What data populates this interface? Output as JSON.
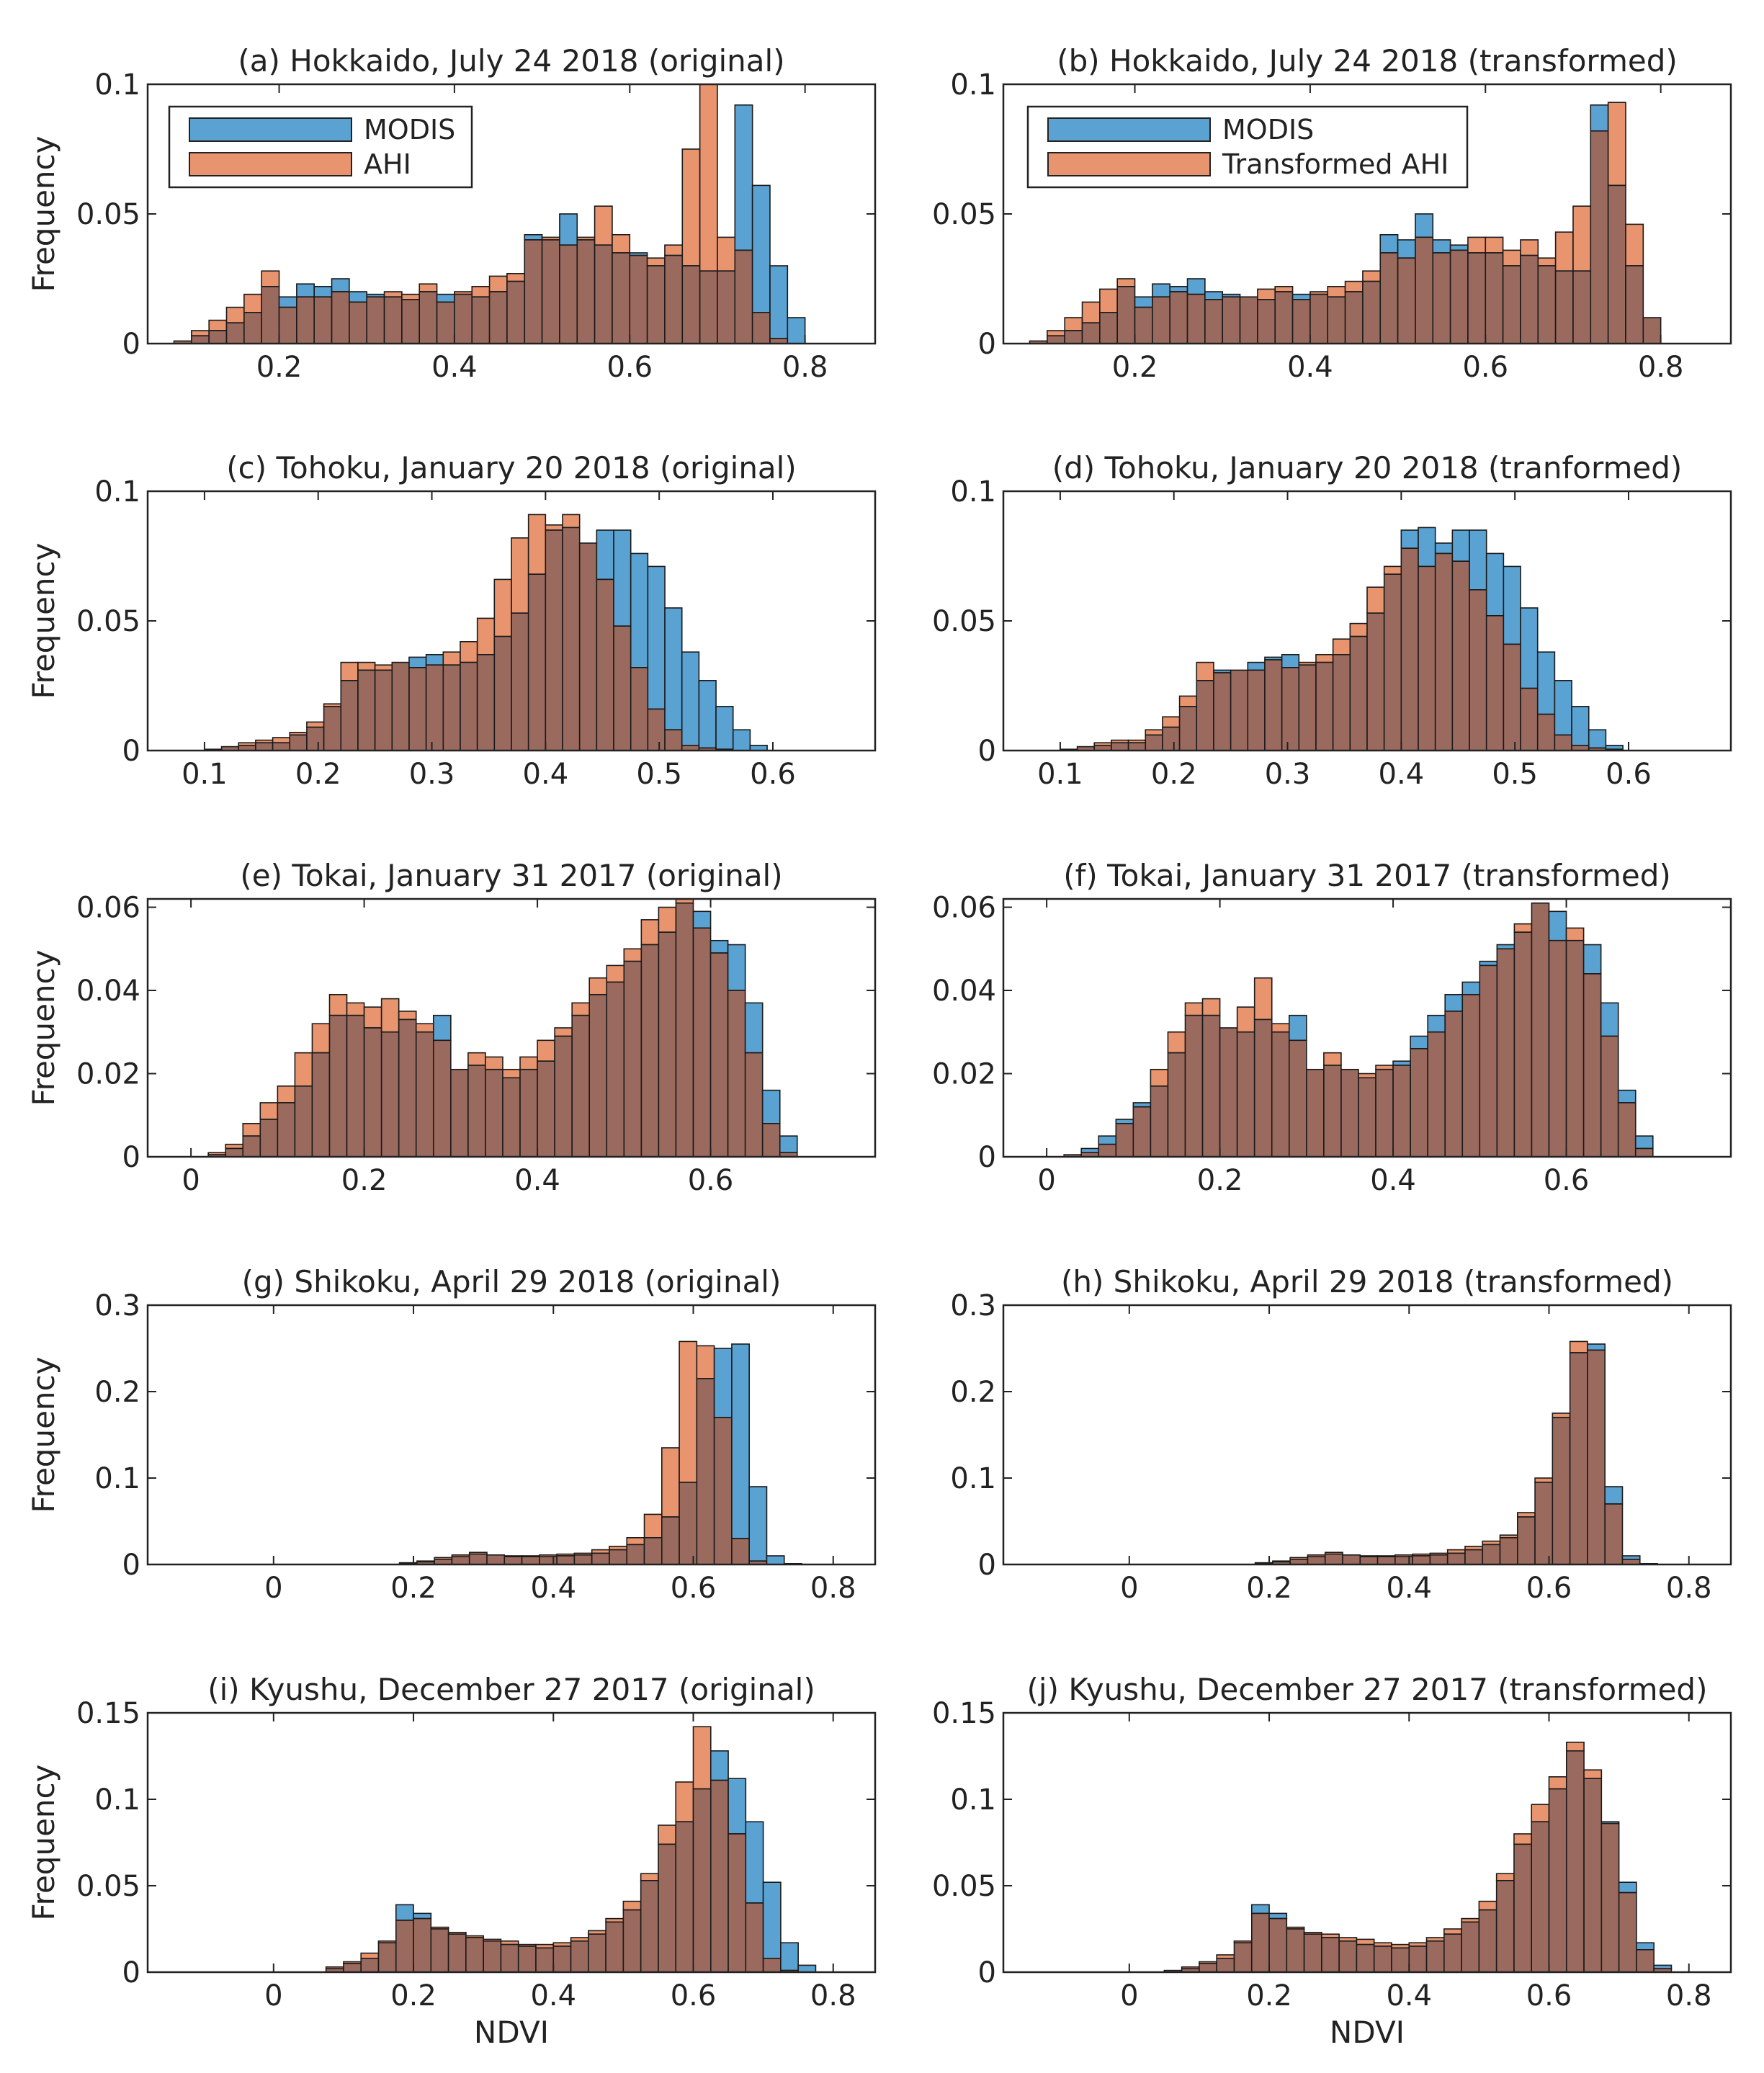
{
  "colors": {
    "modis": "#5aa2d2",
    "ahi": "#e8946e",
    "overlap": "#9b6a5e",
    "edge": "#1a1a1a"
  },
  "chart_data": [
    {
      "type": "bar",
      "title": "(a) Hokkaido, July 24 2018 (original)",
      "ylabel": "Frequency",
      "xlabel": "",
      "xlim": [
        0.05,
        0.88
      ],
      "ylim": [
        0,
        0.1
      ],
      "xticks": [
        0.2,
        0.4,
        0.6,
        0.8
      ],
      "yticks": [
        0,
        0.05,
        0.1
      ],
      "ytick_labels": [
        "0",
        "0.05",
        "0.1"
      ],
      "bin_start": 0.08,
      "bin_width": 0.02,
      "legend": [
        "MODIS",
        "AHI"
      ],
      "series": [
        {
          "name": "MODIS",
          "values": [
            0.001,
            0.003,
            0.005,
            0.008,
            0.012,
            0.022,
            0.018,
            0.023,
            0.022,
            0.025,
            0.02,
            0.019,
            0.018,
            0.017,
            0.02,
            0.019,
            0.019,
            0.018,
            0.02,
            0.024,
            0.042,
            0.04,
            0.05,
            0.04,
            0.038,
            0.035,
            0.035,
            0.03,
            0.034,
            0.03,
            0.028,
            0.028,
            0.092,
            0.061,
            0.03,
            0.01
          ]
        },
        {
          "name": "AHI",
          "values": [
            0.001,
            0.005,
            0.009,
            0.014,
            0.019,
            0.028,
            0.014,
            0.018,
            0.018,
            0.02,
            0.016,
            0.018,
            0.02,
            0.019,
            0.023,
            0.016,
            0.02,
            0.022,
            0.026,
            0.027,
            0.04,
            0.041,
            0.038,
            0.041,
            0.053,
            0.042,
            0.034,
            0.033,
            0.038,
            0.075,
            0.102,
            0.041,
            0.036,
            0.012,
            0.002,
            0.0
          ]
        }
      ]
    },
    {
      "type": "bar",
      "title": "(b) Hokkaido, July 24 2018 (transformed)",
      "ylabel": "",
      "xlabel": "",
      "xlim": [
        0.05,
        0.88
      ],
      "ylim": [
        0,
        0.1
      ],
      "xticks": [
        0.2,
        0.4,
        0.6,
        0.8
      ],
      "yticks": [
        0,
        0.05,
        0.1
      ],
      "ytick_labels": [
        "0",
        "0.05",
        "0.1"
      ],
      "bin_start": 0.08,
      "bin_width": 0.02,
      "legend": [
        "MODIS",
        "Transformed AHI"
      ],
      "series": [
        {
          "name": "MODIS",
          "values": [
            0.001,
            0.003,
            0.005,
            0.008,
            0.012,
            0.022,
            0.018,
            0.023,
            0.022,
            0.025,
            0.02,
            0.019,
            0.018,
            0.017,
            0.02,
            0.019,
            0.019,
            0.018,
            0.02,
            0.024,
            0.042,
            0.04,
            0.05,
            0.04,
            0.038,
            0.035,
            0.035,
            0.03,
            0.034,
            0.03,
            0.028,
            0.028,
            0.092,
            0.061,
            0.03,
            0.01
          ]
        },
        {
          "name": "Transformed AHI",
          "values": [
            0.001,
            0.005,
            0.01,
            0.016,
            0.021,
            0.025,
            0.014,
            0.018,
            0.02,
            0.019,
            0.017,
            0.018,
            0.018,
            0.021,
            0.022,
            0.017,
            0.02,
            0.022,
            0.024,
            0.028,
            0.035,
            0.033,
            0.041,
            0.035,
            0.036,
            0.041,
            0.041,
            0.036,
            0.04,
            0.033,
            0.043,
            0.053,
            0.082,
            0.093,
            0.046,
            0.01
          ]
        }
      ]
    },
    {
      "type": "bar",
      "title": "(c) Tohoku, January 20 2018 (original)",
      "ylabel": "Frequency",
      "xlabel": "",
      "xlim": [
        0.05,
        0.69
      ],
      "ylim": [
        0,
        0.1
      ],
      "xticks": [
        0.1,
        0.2,
        0.3,
        0.4,
        0.5,
        0.6
      ],
      "yticks": [
        0,
        0.05,
        0.1
      ],
      "ytick_labels": [
        "0",
        "0.05",
        "0.1"
      ],
      "bin_start": 0.1,
      "bin_width": 0.015,
      "legend": [],
      "series": [
        {
          "name": "MODIS",
          "values": [
            0.0005,
            0.0015,
            0.002,
            0.003,
            0.003,
            0.006,
            0.009,
            0.017,
            0.027,
            0.031,
            0.031,
            0.034,
            0.036,
            0.037,
            0.033,
            0.034,
            0.037,
            0.044,
            0.053,
            0.068,
            0.085,
            0.086,
            0.08,
            0.085,
            0.085,
            0.076,
            0.071,
            0.055,
            0.038,
            0.027,
            0.017,
            0.008,
            0.002
          ]
        },
        {
          "name": "AHI",
          "values": [
            0.0005,
            0.0015,
            0.003,
            0.004,
            0.005,
            0.007,
            0.011,
            0.018,
            0.034,
            0.034,
            0.033,
            0.034,
            0.032,
            0.033,
            0.038,
            0.042,
            0.051,
            0.066,
            0.082,
            0.091,
            0.087,
            0.091,
            0.08,
            0.066,
            0.048,
            0.032,
            0.016,
            0.008,
            0.002,
            0.001,
            0.0005,
            0.0,
            0.0
          ]
        }
      ]
    },
    {
      "type": "bar",
      "title": "(d) Tohoku, January 20 2018 (tranformed)",
      "ylabel": "",
      "xlabel": "",
      "xlim": [
        0.05,
        0.69
      ],
      "ylim": [
        0,
        0.1
      ],
      "xticks": [
        0.1,
        0.2,
        0.3,
        0.4,
        0.5,
        0.6
      ],
      "yticks": [
        0,
        0.05,
        0.1
      ],
      "ytick_labels": [
        "0",
        "0.05",
        "0.1"
      ],
      "bin_start": 0.1,
      "bin_width": 0.015,
      "legend": [],
      "series": [
        {
          "name": "MODIS",
          "values": [
            0.0005,
            0.0015,
            0.002,
            0.003,
            0.003,
            0.006,
            0.009,
            0.017,
            0.027,
            0.031,
            0.031,
            0.034,
            0.036,
            0.037,
            0.033,
            0.034,
            0.037,
            0.044,
            0.053,
            0.068,
            0.085,
            0.086,
            0.08,
            0.085,
            0.085,
            0.076,
            0.071,
            0.055,
            0.038,
            0.027,
            0.017,
            0.008,
            0.002
          ]
        },
        {
          "name": "Transformed AHI",
          "values": [
            0.0005,
            0.0015,
            0.003,
            0.004,
            0.004,
            0.008,
            0.013,
            0.021,
            0.034,
            0.03,
            0.031,
            0.031,
            0.035,
            0.032,
            0.034,
            0.037,
            0.043,
            0.049,
            0.063,
            0.071,
            0.078,
            0.071,
            0.076,
            0.073,
            0.062,
            0.052,
            0.041,
            0.024,
            0.014,
            0.006,
            0.002,
            0.001,
            0.0005
          ]
        }
      ]
    },
    {
      "type": "bar",
      "title": "(e) Tokai, January 31 2017 (original)",
      "ylabel": "Frequency",
      "xlabel": "",
      "xlim": [
        -0.05,
        0.79
      ],
      "ylim": [
        0,
        0.062
      ],
      "xticks": [
        0,
        0.2,
        0.4,
        0.6
      ],
      "yticks": [
        0,
        0.02,
        0.04,
        0.06
      ],
      "ytick_labels": [
        "0",
        "0.02",
        "0.04",
        "0.06"
      ],
      "bin_start": 0.0,
      "bin_width": 0.02,
      "legend": [],
      "series": [
        {
          "name": "MODIS",
          "values": [
            0.0,
            0.0005,
            0.002,
            0.005,
            0.009,
            0.013,
            0.017,
            0.025,
            0.034,
            0.034,
            0.031,
            0.03,
            0.033,
            0.03,
            0.034,
            0.021,
            0.022,
            0.021,
            0.019,
            0.021,
            0.023,
            0.029,
            0.034,
            0.039,
            0.042,
            0.047,
            0.051,
            0.054,
            0.061,
            0.059,
            0.052,
            0.051,
            0.037,
            0.016,
            0.005,
            0.0
          ]
        },
        {
          "name": "AHI",
          "values": [
            0.0,
            0.001,
            0.003,
            0.008,
            0.013,
            0.017,
            0.025,
            0.032,
            0.039,
            0.037,
            0.036,
            0.038,
            0.035,
            0.032,
            0.028,
            0.021,
            0.025,
            0.024,
            0.021,
            0.024,
            0.028,
            0.031,
            0.037,
            0.043,
            0.046,
            0.05,
            0.057,
            0.06,
            0.062,
            0.055,
            0.049,
            0.04,
            0.025,
            0.008,
            0.001,
            0.0
          ]
        }
      ]
    },
    {
      "type": "bar",
      "title": "(f) Tokai, January 31 2017 (transformed)",
      "ylabel": "",
      "xlabel": "",
      "xlim": [
        -0.05,
        0.79
      ],
      "ylim": [
        0,
        0.062
      ],
      "xticks": [
        0,
        0.2,
        0.4,
        0.6
      ],
      "yticks": [
        0,
        0.02,
        0.04,
        0.06
      ],
      "ytick_labels": [
        "0",
        "0.02",
        "0.04",
        "0.06"
      ],
      "bin_start": 0.0,
      "bin_width": 0.02,
      "legend": [],
      "series": [
        {
          "name": "MODIS",
          "values": [
            0.0,
            0.0005,
            0.002,
            0.005,
            0.009,
            0.013,
            0.017,
            0.025,
            0.034,
            0.034,
            0.031,
            0.03,
            0.033,
            0.03,
            0.034,
            0.021,
            0.022,
            0.021,
            0.019,
            0.021,
            0.023,
            0.029,
            0.034,
            0.039,
            0.042,
            0.047,
            0.051,
            0.054,
            0.061,
            0.059,
            0.052,
            0.051,
            0.037,
            0.016,
            0.005,
            0.0
          ]
        },
        {
          "name": "Transformed AHI",
          "values": [
            0.0,
            0.0005,
            0.001,
            0.003,
            0.008,
            0.012,
            0.021,
            0.03,
            0.037,
            0.038,
            0.031,
            0.036,
            0.043,
            0.032,
            0.028,
            0.021,
            0.025,
            0.021,
            0.02,
            0.022,
            0.022,
            0.026,
            0.03,
            0.035,
            0.039,
            0.046,
            0.05,
            0.056,
            0.061,
            0.052,
            0.055,
            0.044,
            0.029,
            0.013,
            0.002,
            0.0
          ]
        }
      ]
    },
    {
      "type": "bar",
      "title": "(g) Shikoku, April 29 2018 (original)",
      "ylabel": "Frequency",
      "xlabel": "",
      "xlim": [
        -0.18,
        0.86
      ],
      "ylim": [
        0,
        0.3
      ],
      "xticks": [
        0,
        0.2,
        0.4,
        0.6,
        0.8
      ],
      "yticks": [
        0,
        0.1,
        0.2,
        0.3
      ],
      "ytick_labels": [
        "0",
        "0.1",
        "0.2",
        "0.3"
      ],
      "bin_start": 0.18,
      "bin_width": 0.025,
      "legend": [],
      "series": [
        {
          "name": "MODIS",
          "values": [
            0.001,
            0.003,
            0.006,
            0.009,
            0.012,
            0.011,
            0.009,
            0.009,
            0.009,
            0.01,
            0.011,
            0.013,
            0.017,
            0.023,
            0.031,
            0.055,
            0.095,
            0.215,
            0.25,
            0.255,
            0.09,
            0.01,
            0.001
          ]
        },
        {
          "name": "AHI",
          "values": [
            0.002,
            0.004,
            0.008,
            0.011,
            0.014,
            0.011,
            0.01,
            0.01,
            0.011,
            0.012,
            0.013,
            0.017,
            0.021,
            0.031,
            0.058,
            0.135,
            0.258,
            0.253,
            0.17,
            0.03,
            0.004,
            0.0,
            0.0
          ]
        }
      ]
    },
    {
      "type": "bar",
      "title": "(h) Shikoku, April 29 2018 (transformed)",
      "ylabel": "",
      "xlabel": "",
      "xlim": [
        -0.18,
        0.86
      ],
      "ylim": [
        0,
        0.3
      ],
      "xticks": [
        0,
        0.2,
        0.4,
        0.6,
        0.8
      ],
      "yticks": [
        0,
        0.1,
        0.2,
        0.3
      ],
      "ytick_labels": [
        "0",
        "0.1",
        "0.2",
        "0.3"
      ],
      "bin_start": 0.18,
      "bin_width": 0.025,
      "legend": [],
      "series": [
        {
          "name": "MODIS",
          "values": [
            0.001,
            0.003,
            0.006,
            0.009,
            0.012,
            0.011,
            0.009,
            0.009,
            0.009,
            0.01,
            0.011,
            0.013,
            0.017,
            0.023,
            0.031,
            0.055,
            0.095,
            0.17,
            0.245,
            0.255,
            0.09,
            0.01,
            0.001
          ]
        },
        {
          "name": "Transformed AHI",
          "values": [
            0.002,
            0.004,
            0.008,
            0.011,
            0.014,
            0.011,
            0.01,
            0.01,
            0.011,
            0.012,
            0.013,
            0.017,
            0.021,
            0.027,
            0.034,
            0.06,
            0.1,
            0.175,
            0.258,
            0.248,
            0.07,
            0.006,
            0.0
          ]
        }
      ]
    },
    {
      "type": "bar",
      "title": "(i) Kyushu, December 27 2017 (original)",
      "ylabel": "Frequency",
      "xlabel": "NDVI",
      "xlim": [
        -0.18,
        0.86
      ],
      "ylim": [
        0,
        0.15
      ],
      "xticks": [
        0,
        0.2,
        0.4,
        0.6,
        0.8
      ],
      "yticks": [
        0,
        0.05,
        0.1,
        0.15
      ],
      "ytick_labels": [
        "0",
        "0.05",
        "0.1",
        "0.15"
      ],
      "bin_start": 0.075,
      "bin_width": 0.025,
      "legend": [],
      "series": [
        {
          "name": "MODIS",
          "values": [
            0.002,
            0.005,
            0.008,
            0.017,
            0.039,
            0.034,
            0.025,
            0.022,
            0.02,
            0.018,
            0.016,
            0.015,
            0.014,
            0.015,
            0.018,
            0.022,
            0.029,
            0.036,
            0.053,
            0.074,
            0.087,
            0.106,
            0.128,
            0.112,
            0.087,
            0.052,
            0.017,
            0.004
          ]
        },
        {
          "name": "AHI",
          "values": [
            0.003,
            0.006,
            0.011,
            0.018,
            0.03,
            0.031,
            0.026,
            0.023,
            0.021,
            0.019,
            0.018,
            0.016,
            0.016,
            0.017,
            0.02,
            0.024,
            0.031,
            0.041,
            0.057,
            0.085,
            0.11,
            0.142,
            0.111,
            0.08,
            0.04,
            0.008,
            0.001,
            0.0
          ]
        }
      ]
    },
    {
      "type": "bar",
      "title": "(j) Kyushu, December 27 2017 (transformed)",
      "ylabel": "",
      "xlabel": "NDVI",
      "xlim": [
        -0.18,
        0.86
      ],
      "ylim": [
        0,
        0.15
      ],
      "xticks": [
        0,
        0.2,
        0.4,
        0.6,
        0.8
      ],
      "yticks": [
        0,
        0.05,
        0.1,
        0.15
      ],
      "ytick_labels": [
        "0",
        "0.05",
        "0.1",
        "0.15"
      ],
      "bin_start": 0.05,
      "bin_width": 0.025,
      "legend": [],
      "series": [
        {
          "name": "MODIS",
          "values": [
            0.001,
            0.002,
            0.005,
            0.008,
            0.017,
            0.039,
            0.034,
            0.025,
            0.022,
            0.02,
            0.018,
            0.016,
            0.015,
            0.014,
            0.015,
            0.018,
            0.022,
            0.029,
            0.036,
            0.053,
            0.074,
            0.087,
            0.106,
            0.128,
            0.112,
            0.087,
            0.052,
            0.017,
            0.004
          ]
        },
        {
          "name": "Transformed AHI",
          "values": [
            0.001,
            0.003,
            0.006,
            0.01,
            0.018,
            0.034,
            0.031,
            0.026,
            0.023,
            0.022,
            0.02,
            0.019,
            0.017,
            0.016,
            0.017,
            0.02,
            0.025,
            0.031,
            0.041,
            0.057,
            0.08,
            0.097,
            0.113,
            0.133,
            0.117,
            0.086,
            0.046,
            0.013,
            0.002
          ]
        }
      ]
    }
  ]
}
